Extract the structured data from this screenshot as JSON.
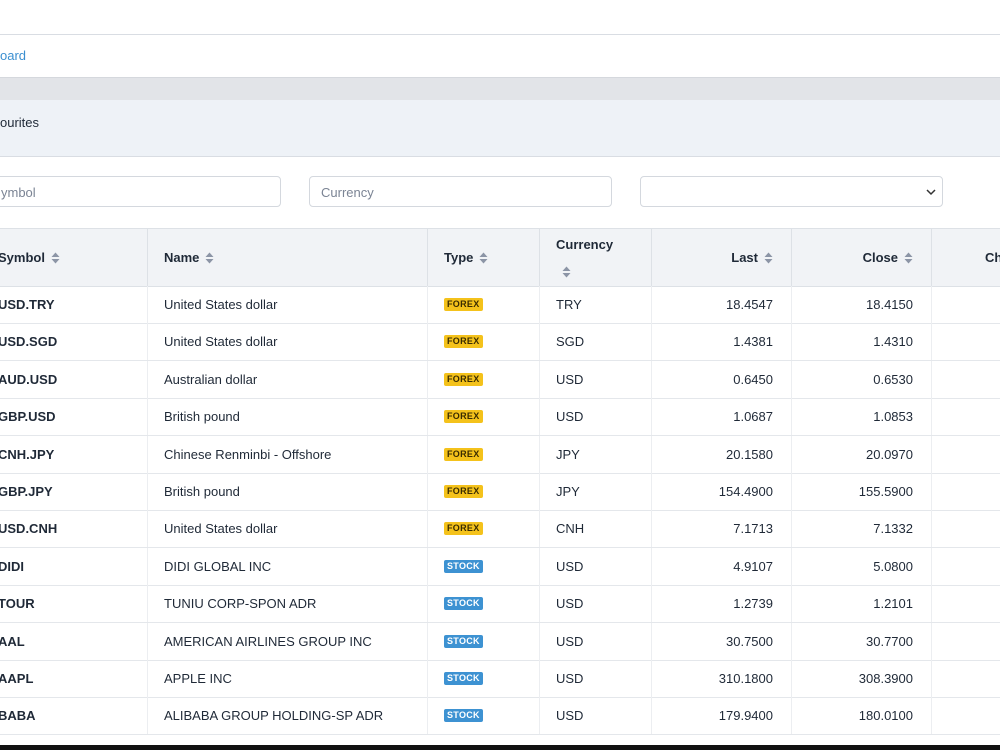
{
  "breadcrumb": "oard",
  "panel_title": "ourites",
  "filters": {
    "symbol_placeholder": "ymbol",
    "currency_placeholder": "Currency"
  },
  "table": {
    "columns": [
      "Symbol",
      "Name",
      "Type",
      "Currency",
      "Last",
      "Close",
      "Ch"
    ],
    "rows": [
      [
        "USD.TRY",
        "United States dollar",
        "FOREX",
        "TRY",
        "18.4547",
        "18.4150"
      ],
      [
        "USD.SGD",
        "United States dollar",
        "FOREX",
        "SGD",
        "1.4381",
        "1.4310"
      ],
      [
        "AUD.USD",
        "Australian dollar",
        "FOREX",
        "USD",
        "0.6450",
        "0.6530"
      ],
      [
        "GBP.USD",
        "British pound",
        "FOREX",
        "USD",
        "1.0687",
        "1.0853"
      ],
      [
        "CNH.JPY",
        "Chinese Renminbi - Offshore",
        "FOREX",
        "JPY",
        "20.1580",
        "20.0970"
      ],
      [
        "GBP.JPY",
        "British pound",
        "FOREX",
        "JPY",
        "154.4900",
        "155.5900"
      ],
      [
        "USD.CNH",
        "United States dollar",
        "FOREX",
        "CNH",
        "7.1713",
        "7.1332"
      ],
      [
        "DIDI",
        "DIDI GLOBAL INC",
        "STOCK",
        "USD",
        "4.9107",
        "5.0800"
      ],
      [
        "TOUR",
        "TUNIU CORP-SPON ADR",
        "STOCK",
        "USD",
        "1.2739",
        "1.2101"
      ],
      [
        "AAL",
        "AMERICAN AIRLINES GROUP INC",
        "STOCK",
        "USD",
        "30.7500",
        "30.7700"
      ],
      [
        "AAPL",
        "APPLE INC",
        "STOCK",
        "USD",
        "310.1800",
        "308.3900"
      ],
      [
        "BABA",
        "ALIBABA GROUP HOLDING-SP ADR",
        "STOCK",
        "USD",
        "179.9400",
        "180.0100"
      ]
    ]
  }
}
